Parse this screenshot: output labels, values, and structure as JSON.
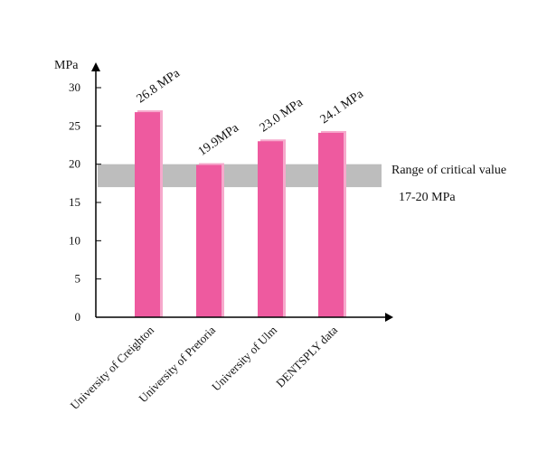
{
  "chart_data": {
    "type": "bar",
    "ylabel": "MPa",
    "ylim": [
      0,
      30
    ],
    "yticks": [
      30,
      25,
      20,
      15,
      10,
      5,
      0
    ],
    "categories": [
      "University of Creighton",
      "University of Pretoria",
      "University of Ulm",
      "DENTSPLY data"
    ],
    "values": [
      26.8,
      19.9,
      23.0,
      24.1
    ],
    "value_labels": [
      "26.8 MPa",
      "19.9MPa",
      "23.0 MPa",
      "24.1 MPa"
    ],
    "band": {
      "range": [
        17,
        20
      ],
      "label": "Range of critical value",
      "sublabel": "17-20 MPa"
    },
    "colors": {
      "bar": "#ee5a9f",
      "bar_highlight": "#f6a9cc",
      "band": "#bdbdbd",
      "axis": "#000000"
    }
  }
}
